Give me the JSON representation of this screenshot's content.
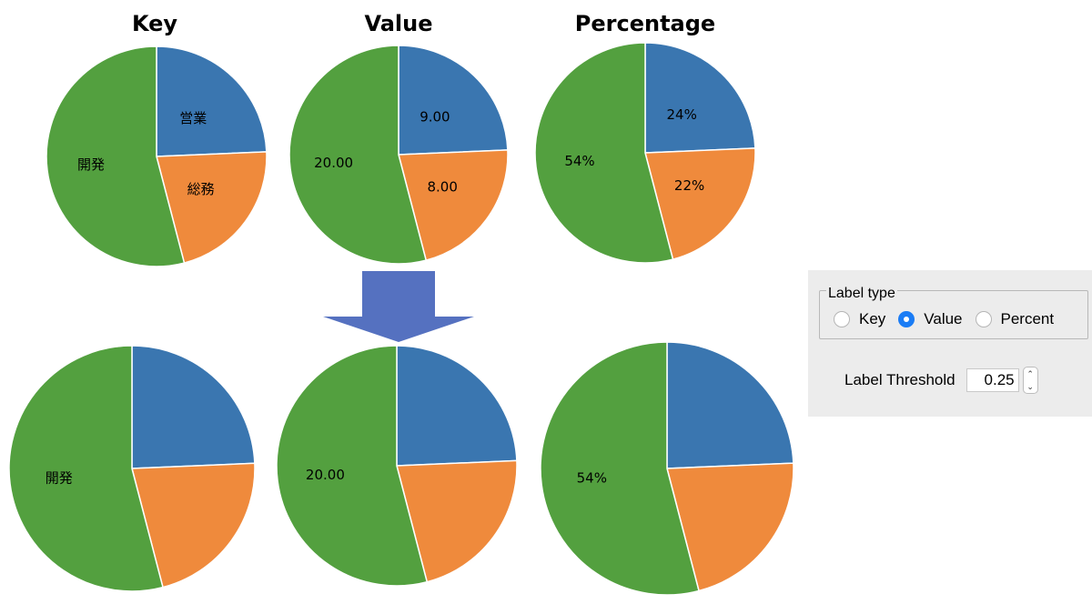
{
  "colors": {
    "blue": "#3a76b0",
    "orange": "#ef8a3c",
    "green": "#53a03f",
    "arrow": "#5571c0"
  },
  "chart_data": [
    {
      "type": "pie",
      "title": "Key",
      "labels": [
        "営業",
        "総務",
        "開発"
      ],
      "values": [
        9,
        8,
        20
      ],
      "slice_labels": [
        "営業",
        "総務",
        "開発"
      ]
    },
    {
      "type": "pie",
      "title": "Value",
      "labels": [
        "営業",
        "総務",
        "開発"
      ],
      "values": [
        9,
        8,
        20
      ],
      "slice_labels": [
        "9.00",
        "8.00",
        "20.00"
      ]
    },
    {
      "type": "pie",
      "title": "Percentage",
      "labels": [
        "営業",
        "総務",
        "開発"
      ],
      "values": [
        9,
        8,
        20
      ],
      "slice_labels": [
        "24%",
        "22%",
        "54%"
      ]
    },
    {
      "type": "pie",
      "title": "",
      "labels": [
        "営業",
        "総務",
        "開発"
      ],
      "values": [
        9,
        8,
        20
      ],
      "slice_labels": [
        "",
        "",
        "開発"
      ]
    },
    {
      "type": "pie",
      "title": "",
      "labels": [
        "営業",
        "総務",
        "開発"
      ],
      "values": [
        9,
        8,
        20
      ],
      "slice_labels": [
        "",
        "",
        "20.00"
      ]
    },
    {
      "type": "pie",
      "title": "",
      "labels": [
        "営業",
        "総務",
        "開発"
      ],
      "values": [
        9,
        8,
        20
      ],
      "slice_labels": [
        "",
        "",
        "54%"
      ]
    }
  ],
  "panel": {
    "legend": "Label type",
    "options": [
      "Key",
      "Value",
      "Percent"
    ],
    "selected": "Value",
    "threshold_label": "Label Threshold",
    "threshold_value": "0.25",
    "stepper_up": "⌃",
    "stepper_down": "⌄"
  }
}
